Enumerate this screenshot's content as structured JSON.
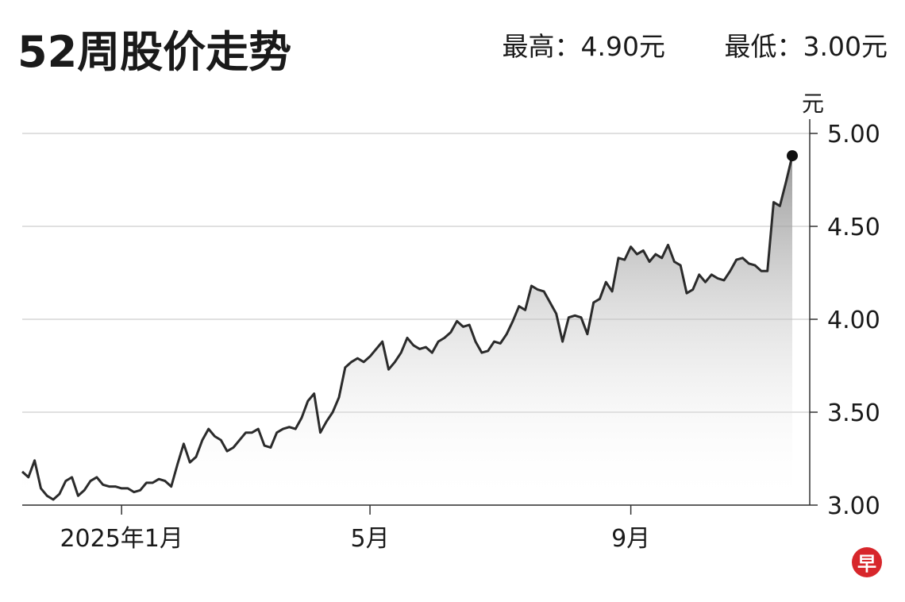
{
  "chart_data": {
    "type": "line",
    "title": "52周股价走势",
    "high_label": "最高：4.90元",
    "low_label": "最低：3.00元",
    "unit": "元",
    "categories": [
      null,
      null,
      null,
      null,
      null,
      null,
      null,
      null,
      null,
      null,
      null,
      null,
      null,
      null,
      null,
      null,
      "2025年1月",
      null,
      null,
      null,
      null,
      null,
      null,
      null,
      null,
      null,
      null,
      null,
      null,
      null,
      null,
      null,
      null,
      null,
      null,
      null,
      null,
      null,
      null,
      null,
      null,
      null,
      null,
      null,
      null,
      null,
      null,
      null,
      null,
      null,
      null,
      null,
      null,
      null,
      null,
      null,
      "5月",
      null,
      null,
      null,
      null,
      null,
      null,
      null,
      null,
      null,
      null,
      null,
      null,
      null,
      null,
      null,
      null,
      null,
      null,
      null,
      null,
      null,
      null,
      null,
      null,
      null,
      null,
      null,
      null,
      null,
      null,
      null,
      null,
      null,
      null,
      null,
      null,
      null,
      null,
      null,
      null,
      null,
      "9月",
      null,
      null,
      null,
      null,
      null,
      null,
      null,
      null,
      null,
      null,
      null,
      null,
      null,
      null,
      null,
      null,
      null,
      null,
      null,
      null,
      null,
      null,
      null,
      null,
      null,
      null
    ],
    "values": [
      3.18,
      3.15,
      3.24,
      3.09,
      3.05,
      3.03,
      3.06,
      3.13,
      3.15,
      3.05,
      3.08,
      3.13,
      3.15,
      3.11,
      3.1,
      3.1,
      3.09,
      3.09,
      3.07,
      3.08,
      3.12,
      3.12,
      3.14,
      3.13,
      3.1,
      3.22,
      3.33,
      3.23,
      3.26,
      3.35,
      3.41,
      3.37,
      3.35,
      3.29,
      3.31,
      3.35,
      3.39,
      3.39,
      3.41,
      3.32,
      3.31,
      3.39,
      3.41,
      3.42,
      3.41,
      3.47,
      3.56,
      3.6,
      3.39,
      3.45,
      3.5,
      3.58,
      3.74,
      3.77,
      3.79,
      3.77,
      3.8,
      3.84,
      3.88,
      3.73,
      3.77,
      3.82,
      3.9,
      3.86,
      3.84,
      3.85,
      3.82,
      3.88,
      3.9,
      3.93,
      3.99,
      3.96,
      3.97,
      3.88,
      3.82,
      3.83,
      3.88,
      3.87,
      3.92,
      3.99,
      4.07,
      4.05,
      4.18,
      4.16,
      4.15,
      4.09,
      4.03,
      3.88,
      4.01,
      4.02,
      4.01,
      3.92,
      4.09,
      4.11,
      4.2,
      4.15,
      4.33,
      4.32,
      4.39,
      4.35,
      4.37,
      4.31,
      4.35,
      4.33,
      4.4,
      4.31,
      4.29,
      4.14,
      4.16,
      4.24,
      4.2,
      4.24,
      4.22,
      4.21,
      4.26,
      4.32,
      4.33,
      4.3,
      4.29,
      4.26,
      4.26,
      4.63,
      4.61,
      4.74,
      4.88
    ],
    "color": "#2b2b2b",
    "ylim": [
      3,
      5
    ],
    "yticks": [
      {
        "value": 3,
        "label": "3.00"
      },
      {
        "value": 3.5,
        "label": "3.50"
      },
      {
        "value": 4,
        "label": "4.00"
      },
      {
        "value": 4.5,
        "label": "4.50"
      },
      {
        "value": 5,
        "label": "5.00"
      }
    ],
    "grid": true
  },
  "logo": "早"
}
